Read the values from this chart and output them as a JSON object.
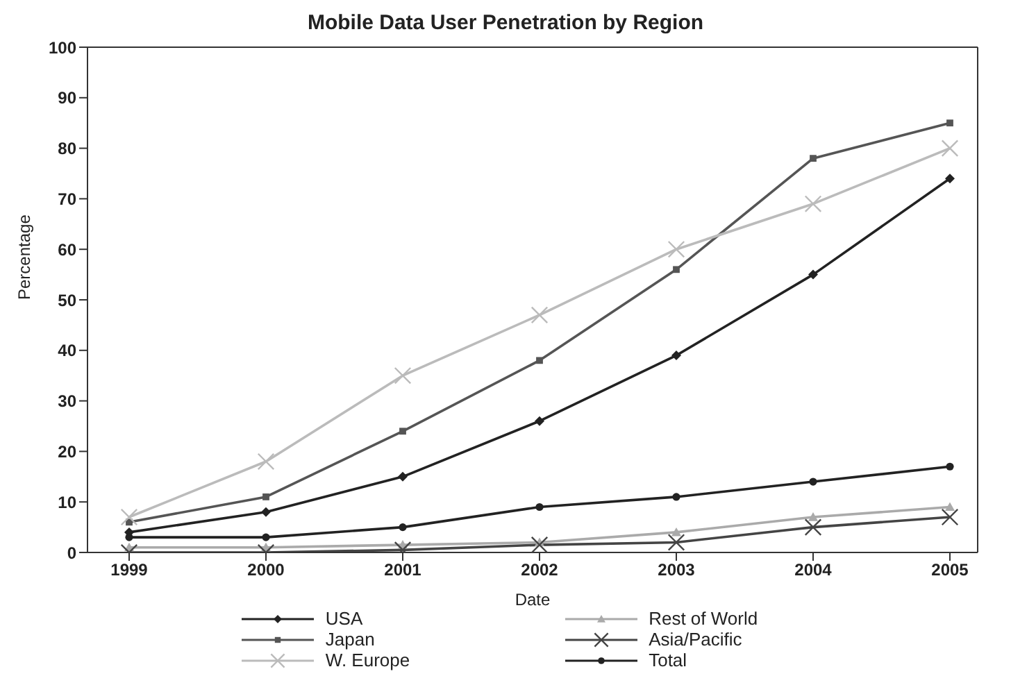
{
  "chart_data": {
    "type": "line",
    "title": "Mobile Data User Penetration by Region",
    "xlabel": "Date",
    "ylabel": "Percentage",
    "categories": [
      "1999",
      "2000",
      "2001",
      "2002",
      "2003",
      "2004",
      "2005"
    ],
    "series": [
      {
        "name": "USA",
        "color": "#222222",
        "marker": "diamond",
        "values": [
          4,
          8,
          15,
          26,
          39,
          55,
          74
        ]
      },
      {
        "name": "Japan",
        "color": "#555555",
        "marker": "square",
        "values": [
          6,
          11,
          24,
          38,
          56,
          78,
          85
        ]
      },
      {
        "name": "W. Europe",
        "color": "#bbbbbb",
        "marker": "cross",
        "values": [
          7,
          18,
          35,
          47,
          60,
          69,
          80
        ]
      },
      {
        "name": "Rest of World",
        "color": "#aaaaaa",
        "marker": "triangle",
        "values": [
          1,
          1,
          1.5,
          2,
          4,
          7,
          9
        ]
      },
      {
        "name": "Asia/Pacific",
        "color": "#444444",
        "marker": "cross",
        "values": [
          0,
          0,
          0.5,
          1.5,
          2,
          5,
          7
        ]
      },
      {
        "name": "Total",
        "color": "#222222",
        "marker": "circle",
        "values": [
          3,
          3,
          5,
          9,
          11,
          14,
          17
        ]
      }
    ],
    "ylim": [
      0,
      100
    ],
    "yticks": [
      0,
      10,
      20,
      30,
      40,
      50,
      60,
      70,
      80,
      90,
      100
    ],
    "grid": false,
    "legend": "bottom",
    "line_style": "solid"
  }
}
